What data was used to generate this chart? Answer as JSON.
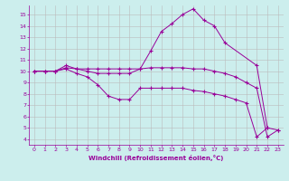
{
  "xlabel": "Windchill (Refroidissement éolien,°C)",
  "bg_color": "#cceeed",
  "line_color": "#990099",
  "grid_color": "#bbbbbb",
  "xlim": [
    -0.5,
    23.5
  ],
  "ylim": [
    3.5,
    15.8
  ],
  "yticks": [
    4,
    5,
    6,
    7,
    8,
    9,
    10,
    11,
    12,
    13,
    14,
    15
  ],
  "xticks": [
    0,
    1,
    2,
    3,
    4,
    5,
    6,
    7,
    8,
    9,
    10,
    11,
    12,
    13,
    14,
    15,
    16,
    17,
    18,
    19,
    20,
    21,
    22,
    23
  ],
  "lines": [
    {
      "x": [
        0,
        1,
        2,
        3,
        4,
        5,
        6,
        7,
        8,
        9,
        10,
        11,
        12,
        13,
        14,
        15,
        16,
        17,
        18,
        21,
        22
      ],
      "y": [
        10,
        10,
        10,
        10.5,
        10.2,
        10.2,
        10.2,
        10.2,
        10.2,
        10.2,
        10.2,
        11.8,
        13.5,
        14.2,
        15.0,
        15.5,
        14.5,
        14.0,
        12.5,
        10.5,
        5.0
      ]
    },
    {
      "x": [
        0,
        1,
        2,
        3,
        4,
        5,
        6,
        7,
        8,
        9,
        10,
        11,
        12,
        13,
        14,
        15,
        16,
        17,
        18,
        19,
        20,
        21,
        22,
        23
      ],
      "y": [
        10,
        10,
        10,
        10.3,
        10.2,
        10.0,
        9.8,
        9.8,
        9.8,
        9.8,
        10.2,
        10.3,
        10.3,
        10.3,
        10.3,
        10.2,
        10.2,
        10.0,
        9.8,
        9.5,
        9.0,
        8.5,
        4.2,
        4.8
      ]
    },
    {
      "x": [
        0,
        1,
        2,
        3,
        4,
        5,
        6,
        7,
        8,
        9,
        10,
        11,
        12,
        13,
        14,
        15,
        16,
        17,
        18,
        19,
        20,
        21,
        22,
        23
      ],
      "y": [
        10,
        10,
        10,
        10.2,
        9.8,
        9.5,
        8.8,
        7.8,
        7.5,
        7.5,
        8.5,
        8.5,
        8.5,
        8.5,
        8.5,
        8.3,
        8.2,
        8.0,
        7.8,
        7.5,
        7.2,
        4.2,
        5.0,
        4.8
      ]
    }
  ]
}
